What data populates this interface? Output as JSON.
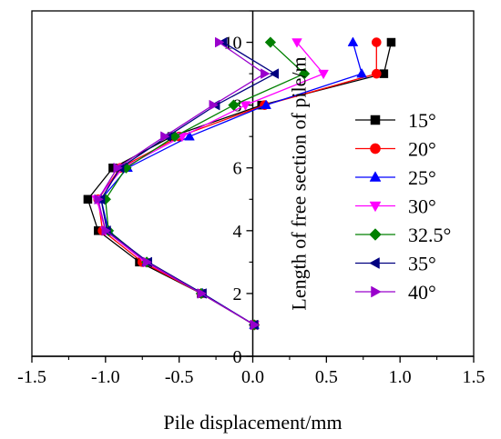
{
  "chart_data": {
    "type": "line",
    "title": "",
    "xlabel": "Pile displacement/mm",
    "ylabel": "Length of free section of pile/m",
    "xlim": [
      -1.5,
      1.5
    ],
    "ylim": [
      0,
      11
    ],
    "xticks": [
      -1.5,
      -1.0,
      -0.5,
      0.0,
      0.5,
      1.0,
      1.5
    ],
    "xtick_labels": [
      "-1.5",
      "-1.0",
      "-0.5",
      "0.0",
      "0.5",
      "1.0",
      "1.5"
    ],
    "yticks": [
      0,
      2,
      4,
      6,
      8,
      10
    ],
    "ytick_labels": [
      "0",
      "2",
      "4",
      "6",
      "8",
      "10"
    ],
    "grid": false,
    "legend_position": "right",
    "y": [
      1,
      2,
      3,
      4,
      5,
      6,
      7,
      8,
      9,
      10
    ],
    "series": [
      {
        "name": "15°",
        "color": "#000000",
        "marker": "square",
        "x": [
          0.01,
          -0.35,
          -0.77,
          -1.05,
          -1.12,
          -0.95,
          -0.55,
          0.06,
          0.89,
          0.94
        ]
      },
      {
        "name": "20°",
        "color": "#ff0000",
        "marker": "circle",
        "x": [
          0.01,
          -0.35,
          -0.75,
          -1.02,
          -1.05,
          -0.9,
          -0.5,
          0.08,
          0.84,
          0.84
        ]
      },
      {
        "name": "25°",
        "color": "#0000ff",
        "marker": "triangle-up",
        "x": [
          0.01,
          -0.34,
          -0.72,
          -0.98,
          -1.03,
          -0.85,
          -0.43,
          0.09,
          0.74,
          0.68
        ]
      },
      {
        "name": "30°",
        "color": "#ff00ff",
        "marker": "triangle-down",
        "x": [
          0.01,
          -0.35,
          -0.73,
          -1.0,
          -1.06,
          -0.88,
          -0.48,
          -0.05,
          0.48,
          0.3
        ]
      },
      {
        "name": "32.5°",
        "color": "#008000",
        "marker": "diamond",
        "x": [
          0.01,
          -0.35,
          -0.72,
          -0.98,
          -1.0,
          -0.86,
          -0.53,
          -0.13,
          0.35,
          0.12
        ]
      },
      {
        "name": "35°",
        "color": "#000080",
        "marker": "triangle-left",
        "x": [
          0.01,
          -0.34,
          -0.71,
          -0.99,
          -1.03,
          -0.9,
          -0.58,
          -0.25,
          0.15,
          -0.2
        ]
      },
      {
        "name": "40°",
        "color": "#9900cc",
        "marker": "triangle-right",
        "x": [
          0.01,
          -0.35,
          -0.72,
          -1.0,
          -1.05,
          -0.92,
          -0.6,
          -0.27,
          0.08,
          -0.23
        ]
      }
    ]
  }
}
